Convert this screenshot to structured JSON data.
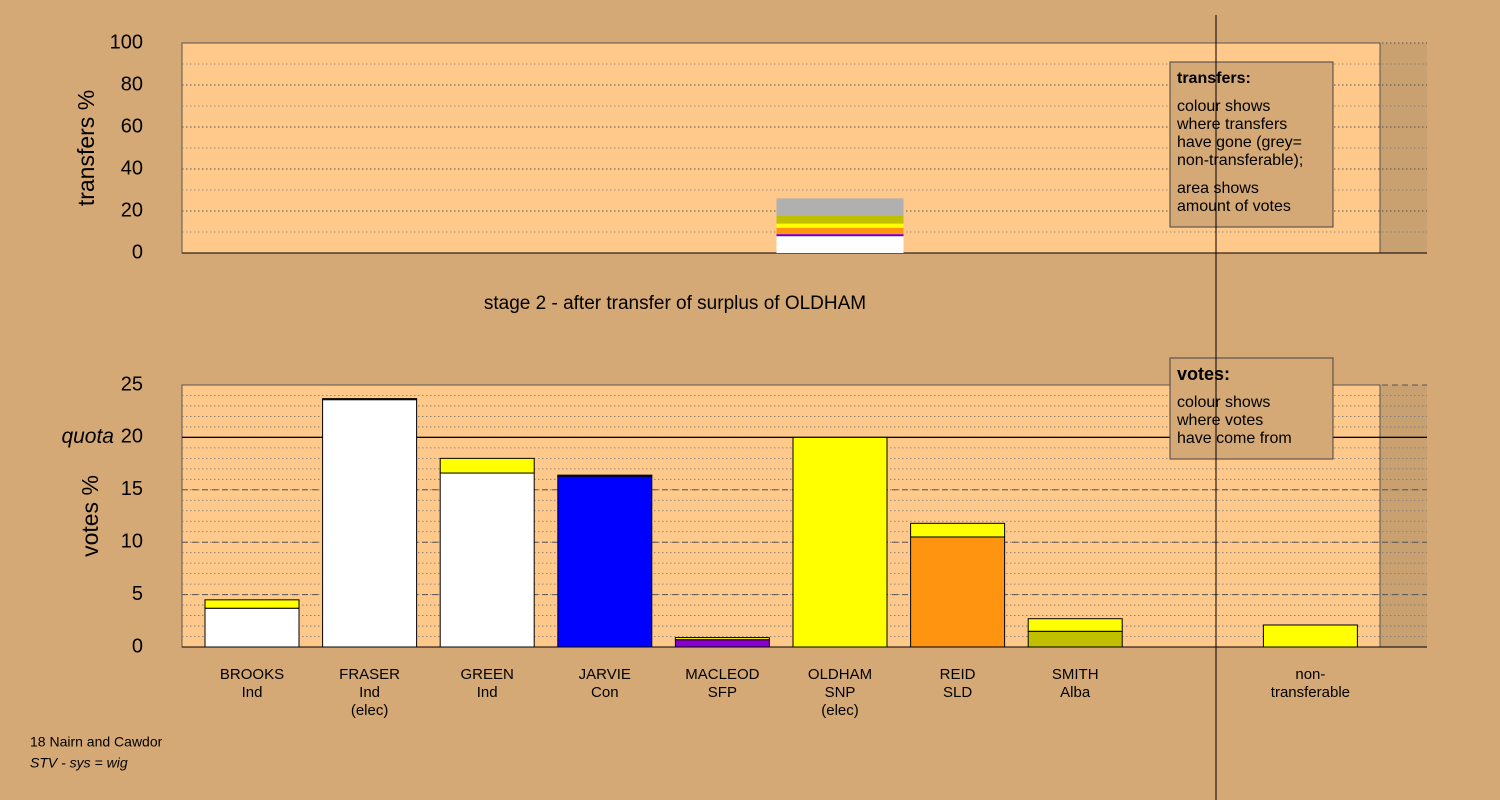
{
  "chart_data": [
    {
      "type": "bar",
      "stacked": true,
      "ylabel": "transfers %",
      "ylim": [
        0,
        100
      ],
      "yticks": [
        0,
        20,
        40,
        60,
        80,
        100
      ],
      "grid_step": 10,
      "grid_style": "dotted",
      "caption": "stage 2 - after transfer of surplus of OLDHAM",
      "series": [
        {
          "color": "#ffffff",
          "values": [
            8
          ]
        },
        {
          "color": "#0000ff",
          "values": [
            0.5
          ]
        },
        {
          "color": "#8800cc",
          "values": [
            0.5
          ]
        },
        {
          "color": "#ff9410",
          "values": [
            3
          ]
        },
        {
          "color": "#ffff00",
          "values": [
            2
          ]
        },
        {
          "color": "#c0c000",
          "values": [
            4
          ]
        },
        {
          "color": "#b0b0b0",
          "values": [
            8
          ]
        }
      ],
      "info_box": {
        "title": "transfers:",
        "paragraphs": [
          [
            "colour shows",
            "where transfers",
            "have gone (grey=",
            "non-transferable);"
          ],
          [
            "area shows",
            "amount of votes"
          ]
        ]
      }
    },
    {
      "type": "bar",
      "stacked": true,
      "ylabel": "votes %",
      "ylim": [
        0,
        25
      ],
      "yticks": [
        0,
        5,
        10,
        15,
        20,
        25
      ],
      "grid_step": 1,
      "grid_style": "dashed",
      "quota": 20,
      "quota_label": "quota",
      "category_labels": [
        [
          "BROOKS",
          "Ind"
        ],
        [
          "FRASER",
          "Ind",
          "(elec)"
        ],
        [
          "GREEN",
          "Ind"
        ],
        [
          "JARVIE",
          "Con"
        ],
        [
          "MACLEOD",
          "SFP"
        ],
        [
          "OLDHAM",
          "SNP",
          "(elec)"
        ],
        [
          "REID",
          "SLD"
        ],
        [
          "SMITH",
          "Alba"
        ],
        null,
        [
          "non-",
          "transferable"
        ]
      ],
      "series": [
        {
          "colors": [
            "#ffffff",
            "#ffffff",
            "#ffffff",
            "#0000ff",
            "#8800cc",
            "#ffff00",
            "#ff9410",
            "#c0c000",
            null,
            null
          ],
          "values": [
            3.7,
            23.6,
            16.6,
            16.3,
            0.7,
            20,
            10.5,
            1.5,
            null,
            null
          ]
        },
        {
          "color": "#ffff00",
          "values": [
            0.8,
            0.1,
            1.4,
            0.1,
            0.2,
            null,
            1.3,
            1.2,
            null,
            2.1
          ]
        }
      ],
      "info_box": {
        "title": "votes:",
        "paragraphs": [
          [
            "colour shows",
            "where votes",
            "have come from"
          ]
        ]
      }
    }
  ],
  "footer": {
    "constituency": "18 Nairn and Cawdor",
    "system": "STV - sys = wig"
  }
}
